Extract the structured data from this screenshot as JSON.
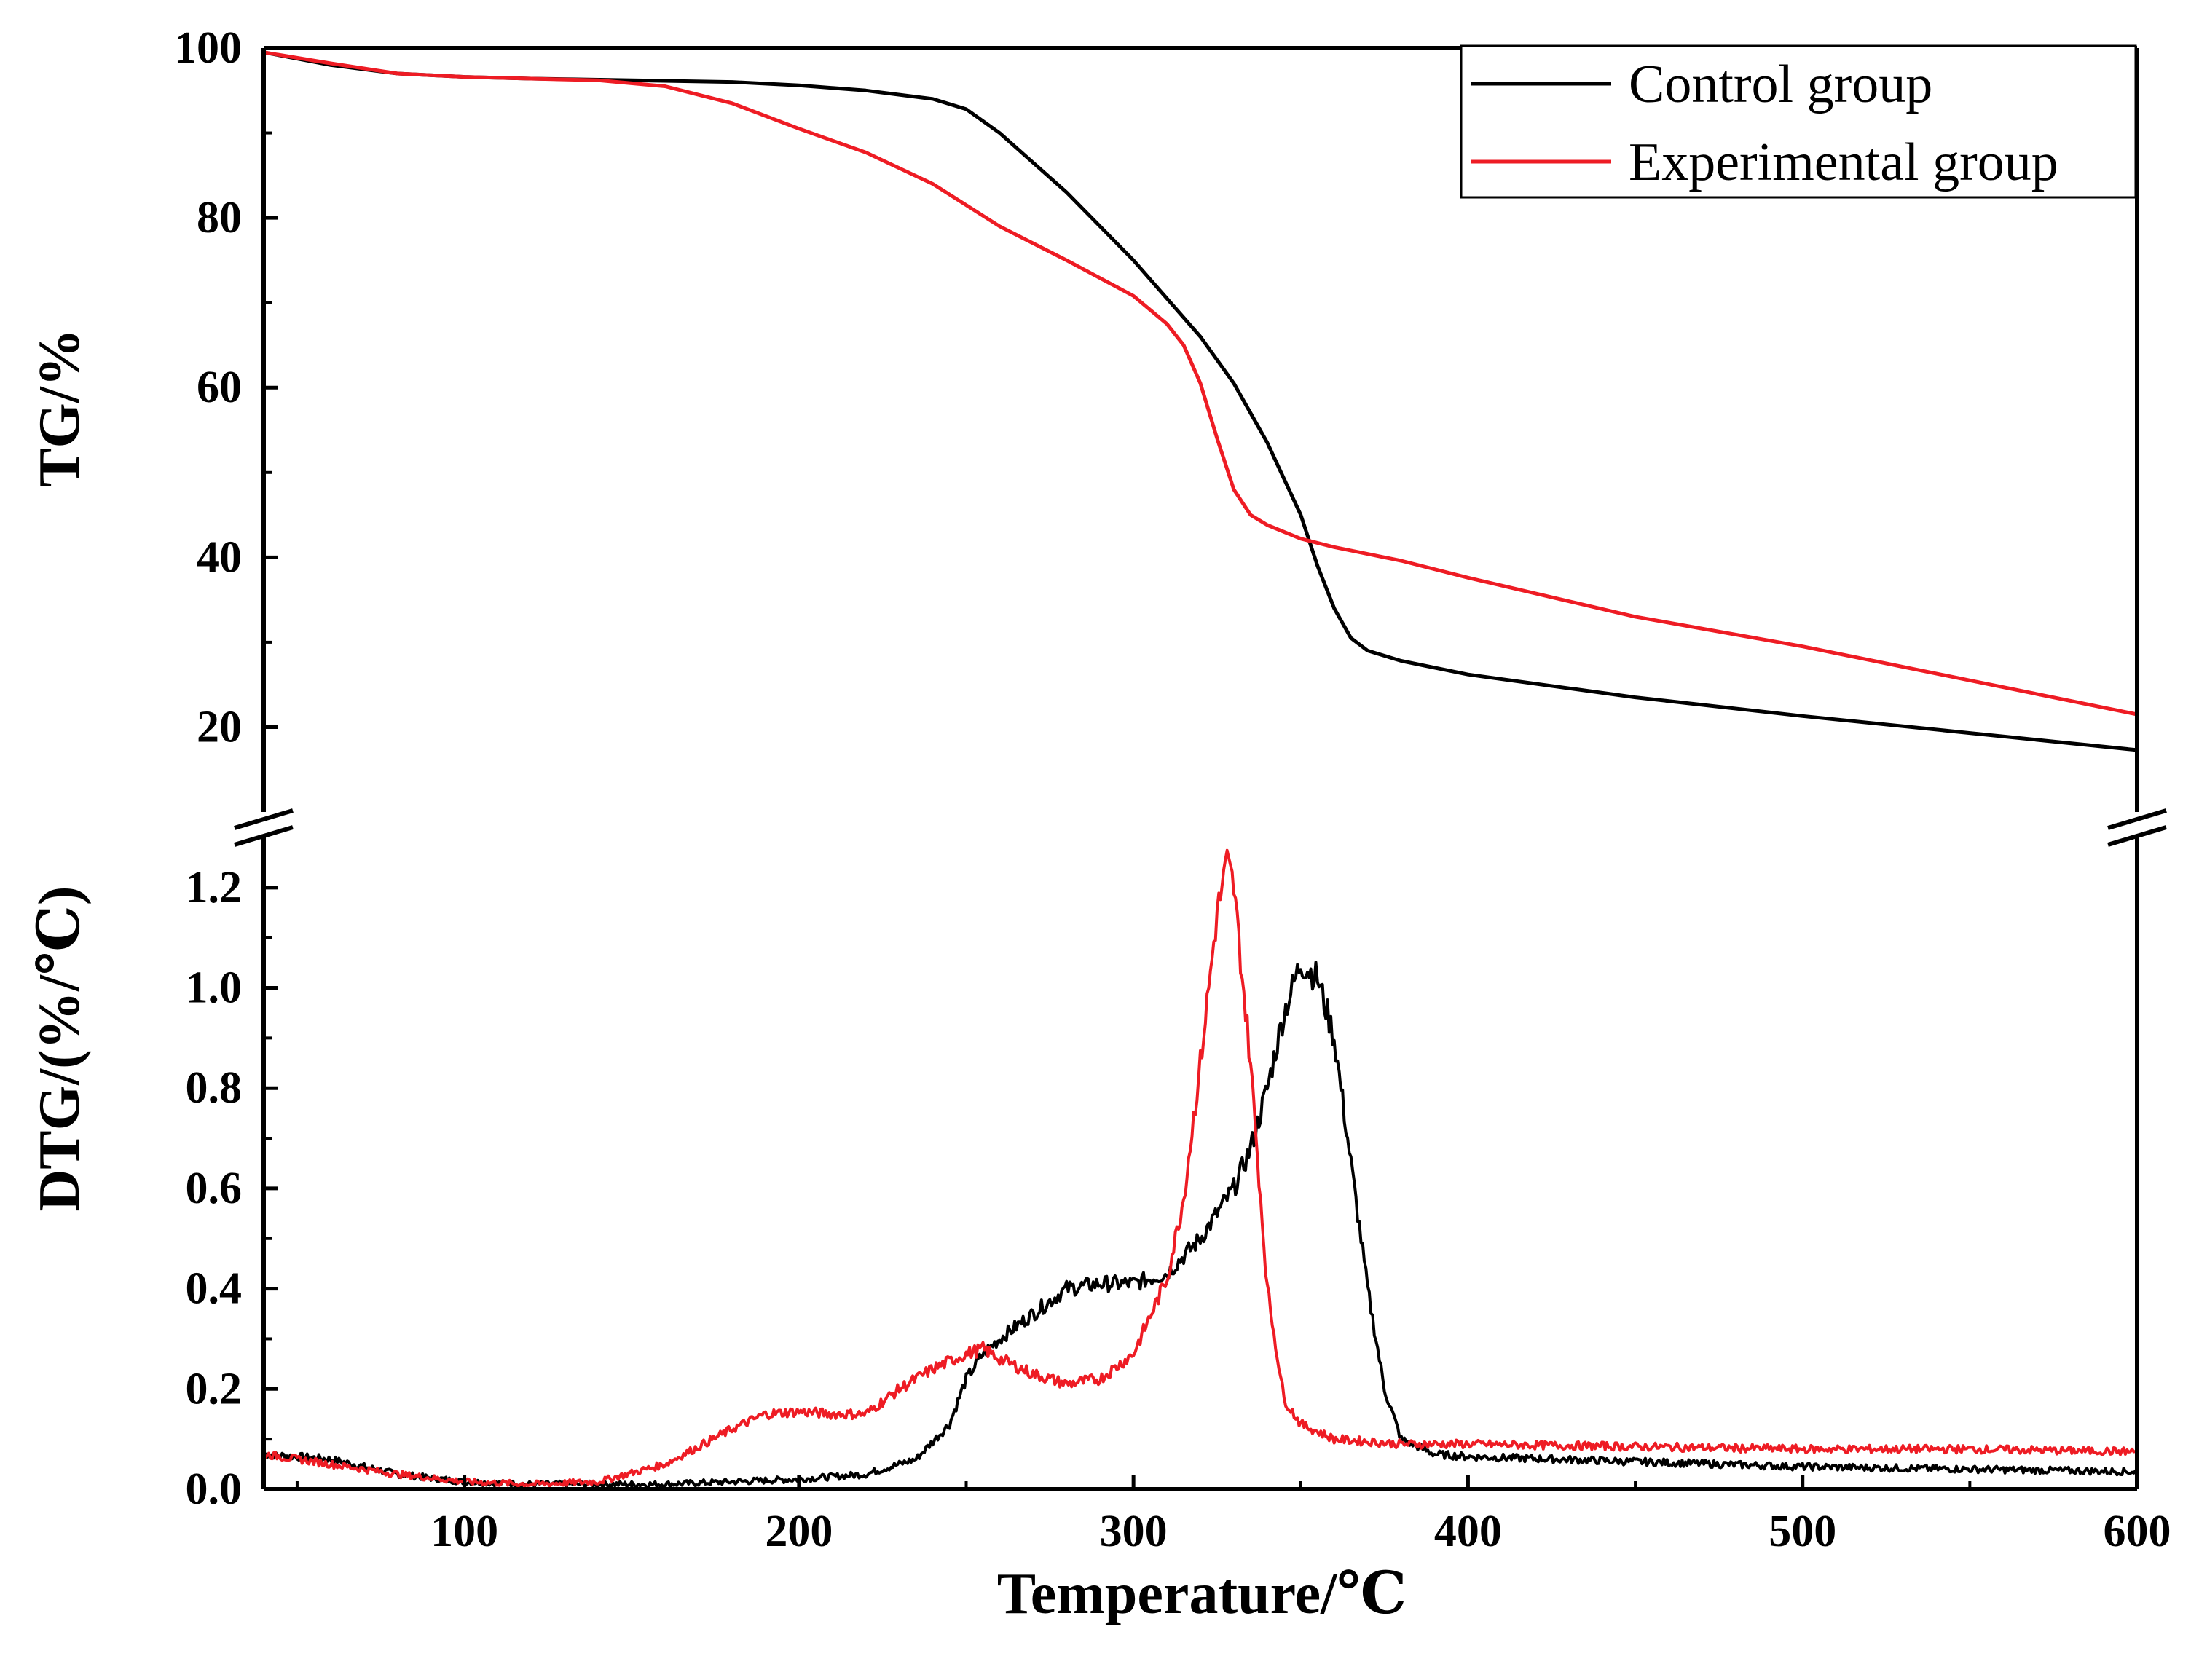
{
  "chart_data": {
    "type": "line",
    "title": "",
    "xlabel": "Temperature/℃",
    "xlim": [
      40,
      600
    ],
    "xticks": [
      100,
      200,
      300,
      400,
      500,
      600
    ],
    "legend": {
      "placement": "top-right"
    },
    "colors": {
      "control": "#000000",
      "experimental": "#ee1c24"
    },
    "panels": [
      {
        "id": "tg",
        "ylabel": "TG/%",
        "ylim": [
          10,
          100
        ],
        "yticks": [
          20,
          40,
          60,
          80,
          100
        ],
        "series": [
          {
            "name": "Control group",
            "color": "#000000",
            "x": [
              40,
              60,
              80,
              100,
              120,
              150,
              180,
              200,
              220,
              240,
              250,
              260,
              280,
              300,
              320,
              330,
              340,
              350,
              355,
              360,
              365,
              370,
              380,
              400,
              450,
              500,
              550,
              600
            ],
            "y": [
              99.5,
              98.0,
              97.0,
              96.6,
              96.4,
              96.2,
              96.0,
              95.6,
              95.0,
              94.0,
              92.8,
              90.0,
              83.0,
              75.0,
              66.0,
              60.5,
              53.5,
              45.0,
              39.0,
              34.0,
              30.5,
              29.0,
              27.8,
              26.2,
              23.5,
              21.3,
              19.3,
              17.3
            ]
          },
          {
            "name": "Experimental group",
            "color": "#ee1c24",
            "x": [
              40,
              60,
              80,
              100,
              120,
              140,
              160,
              180,
              200,
              220,
              240,
              260,
              280,
              300,
              310,
              315,
              320,
              325,
              330,
              335,
              340,
              350,
              360,
              380,
              400,
              450,
              500,
              550,
              600
            ],
            "y": [
              99.5,
              98.2,
              97.0,
              96.6,
              96.4,
              96.2,
              95.5,
              93.5,
              90.5,
              87.7,
              84.0,
              79.0,
              75.0,
              70.8,
              67.5,
              65.0,
              60.5,
              54.0,
              48.0,
              45.0,
              43.8,
              42.2,
              41.2,
              39.6,
              37.6,
              33.0,
              29.5,
              25.5,
              21.5
            ]
          }
        ]
      },
      {
        "id": "dtg",
        "ylabel": "DTG/(%/℃)",
        "ylim": [
          0,
          1.3
        ],
        "yticks": [
          0.0,
          0.2,
          0.4,
          0.6,
          0.8,
          1.0,
          1.2
        ],
        "series": [
          {
            "name": "Control group",
            "color": "#000000",
            "x": [
              40,
              60,
              80,
              100,
              120,
              140,
              160,
              180,
              200,
              220,
              235,
              245,
              250,
              255,
              260,
              270,
              280,
              290,
              300,
              310,
              320,
              330,
              335,
              340,
              345,
              350,
              355,
              360,
              365,
              370,
              375,
              380,
              390,
              400,
              450,
              500,
              550,
              600
            ],
            "y": [
              0.07,
              0.06,
              0.03,
              0.015,
              0.01,
              0.01,
              0.01,
              0.015,
              0.02,
              0.03,
              0.06,
              0.13,
              0.22,
              0.27,
              0.3,
              0.35,
              0.4,
              0.41,
              0.41,
              0.43,
              0.5,
              0.6,
              0.68,
              0.8,
              0.95,
              1.05,
              1.02,
              0.9,
              0.65,
              0.4,
              0.2,
              0.1,
              0.07,
              0.065,
              0.055,
              0.045,
              0.04,
              0.035
            ]
          },
          {
            "name": "Experimental group",
            "color": "#ee1c24",
            "x": [
              40,
              60,
              80,
              100,
              120,
              140,
              160,
              180,
              190,
              200,
              210,
              220,
              230,
              240,
              250,
              255,
              260,
              270,
              280,
              290,
              300,
              310,
              315,
              320,
              325,
              328,
              330,
              335,
              340,
              345,
              350,
              360,
              380,
              400,
              450,
              500,
              550,
              600
            ],
            "y": [
              0.07,
              0.05,
              0.03,
              0.015,
              0.01,
              0.015,
              0.05,
              0.12,
              0.15,
              0.155,
              0.15,
              0.15,
              0.2,
              0.24,
              0.27,
              0.28,
              0.26,
              0.23,
              0.21,
              0.22,
              0.27,
              0.42,
              0.58,
              0.85,
              1.15,
              1.25,
              1.2,
              0.85,
              0.4,
              0.18,
              0.13,
              0.1,
              0.09,
              0.09,
              0.085,
              0.08,
              0.08,
              0.075
            ]
          }
        ]
      }
    ]
  }
}
